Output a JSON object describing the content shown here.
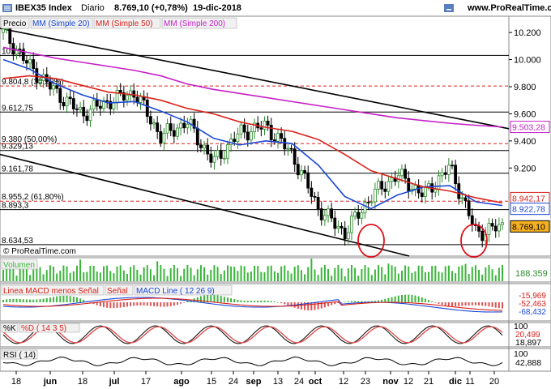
{
  "header": {
    "instrument": "IBEX35 Index",
    "period": "Diario",
    "last": "8.769,10 (+0,78%)",
    "date": "19-dic-2018",
    "site": "www.ProRealTime.com"
  },
  "price_panel": {
    "legend": [
      "Precio",
      "MM (Simple 20)",
      "MM (Simple 50)",
      "MM (Simple 200)"
    ],
    "legend_colors": [
      "#000000",
      "#1a47d6",
      "#d9231b",
      "#c61fc8"
    ],
    "watermark": "© ProRealTime.com",
    "axis_ticks": [
      "10.200",
      "10.000",
      "9.800",
      "9.600",
      "9.400",
      "9.200"
    ],
    "level_labels": [
      "10.031",
      "9.804,8 (38,20%)",
      "9.612,75",
      "9.380 (50,00%)",
      "9.329,13",
      "9.161,78",
      "8.955,2 (61,80%)",
      "8.893,3",
      "8.634,53"
    ],
    "right_badges": [
      "9.503,28",
      "8.942,17",
      "8.922,78",
      "8.769,10"
    ]
  },
  "volume_panel": {
    "label": "Volumen",
    "value": "188.359"
  },
  "macd_panel": {
    "labels": [
      "Linea MACD menos Señal",
      "Señal",
      "MACD Line ( 12 26 9)"
    ],
    "values": [
      "-15,969",
      "-52,463",
      "-68,432"
    ]
  },
  "stoch_panel": {
    "labels": [
      "%K",
      "%D ( 14 3 5)"
    ],
    "axis": "100",
    "values": [
      "20,499",
      "18,897"
    ]
  },
  "rsi_panel": {
    "label": "RSI ( 14)",
    "axis": "100",
    "value": "42,888"
  },
  "x_axis": {
    "labels": [
      "18",
      "jun",
      "18",
      "jul",
      "17",
      "ago",
      "15",
      "24",
      "sep",
      "13",
      "24",
      "oct",
      "12",
      "23",
      "nov",
      "12",
      "21",
      "dic",
      "11",
      "20"
    ]
  },
  "colors": {
    "sma20": "#1a47d6",
    "sma50": "#d9231b",
    "sma200": "#c61fc8",
    "circle": "#e0101a",
    "volume": "#3bb53b"
  },
  "chart_data": {
    "type": "line",
    "title": "IBEX35 Index",
    "ylim": [
      8550,
      10320
    ],
    "x": [
      "may 18",
      "jun 1",
      "jun 18",
      "jul 2",
      "jul 17",
      "ago 1",
      "ago 15",
      "ago 24",
      "sep 3",
      "sep 13",
      "sep 24",
      "oct 2",
      "oct 12",
      "oct 23",
      "nov 2",
      "nov 12",
      "nov 21",
      "dic 3",
      "dic 11",
      "dic 19"
    ],
    "series": [
      {
        "name": "Precio",
        "values": [
          10200,
          9950,
          9760,
          9600,
          9690,
          9760,
          9430,
          9540,
          9240,
          9460,
          9510,
          9300,
          8900,
          8720,
          8990,
          9150,
          9000,
          9210,
          8720,
          8769
        ]
      },
      {
        "name": "MM (Simple 20)",
        "values": [
          10000,
          9930,
          9820,
          9740,
          9680,
          9690,
          9620,
          9540,
          9420,
          9370,
          9400,
          9380,
          9220,
          8990,
          8900,
          9000,
          9060,
          9070,
          8950,
          8923
        ]
      },
      {
        "name": "MM (Simple 50)",
        "values": [
          9860,
          9880,
          9860,
          9810,
          9760,
          9740,
          9700,
          9640,
          9600,
          9540,
          9500,
          9470,
          9410,
          9300,
          9180,
          9120,
          9060,
          9030,
          8980,
          8942
        ]
      },
      {
        "name": "MM (Simple 200)",
        "values": [
          10090,
          10050,
          10010,
          9980,
          9950,
          9920,
          9880,
          9820,
          9780,
          9750,
          9720,
          9690,
          9660,
          9630,
          9600,
          9570,
          9550,
          9530,
          9515,
          9503
        ]
      }
    ],
    "reference_levels": [
      10031,
      9804.8,
      9612.75,
      9380,
      9329.13,
      9161.78,
      8955.2,
      8893.3,
      8634.53
    ]
  }
}
